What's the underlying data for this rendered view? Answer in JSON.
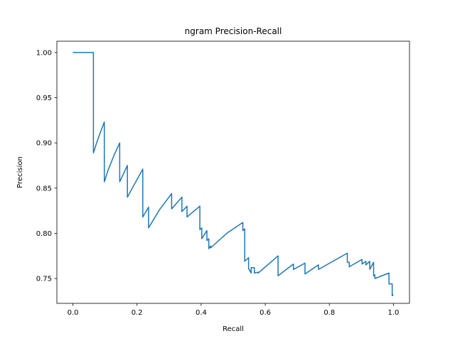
{
  "chart_data": {
    "type": "line",
    "title": "ngram Precision-Recall",
    "xlabel": "Recall",
    "ylabel": "Precision",
    "xlim": [
      -0.05,
      1.05
    ],
    "ylim": [
      0.7225,
      1.0125
    ],
    "xticks": [
      0.0,
      0.2,
      0.4,
      0.6,
      0.8,
      1.0
    ],
    "xtick_labels": [
      "0.0",
      "0.2",
      "0.4",
      "0.6",
      "0.8",
      "1.0"
    ],
    "yticks": [
      0.75,
      0.8,
      0.85,
      0.9,
      0.95,
      1.0
    ],
    "ytick_labels": [
      "0.75",
      "0.80",
      "0.85",
      "0.90",
      "0.95",
      "1.00"
    ],
    "grid": false,
    "line_color": "#1f77b4",
    "series": [
      {
        "x": [
          0.0,
          0.064,
          0.064,
          0.074,
          0.086,
          0.098,
          0.098,
          0.11,
          0.128,
          0.146,
          0.146,
          0.158,
          0.17,
          0.17,
          0.19,
          0.218,
          0.218,
          0.228,
          0.236,
          0.236,
          0.27,
          0.308,
          0.308,
          0.34,
          0.34,
          0.356,
          0.356,
          0.396,
          0.396,
          0.402,
          0.402,
          0.418,
          0.418,
          0.424,
          0.424,
          0.43,
          0.43,
          0.48,
          0.53,
          0.53,
          0.536,
          0.536,
          0.548,
          0.548,
          0.556,
          0.556,
          0.566,
          0.566,
          0.578,
          0.578,
          0.64,
          0.64,
          0.688,
          0.688,
          0.724,
          0.724,
          0.766,
          0.766,
          0.856,
          0.856,
          0.862,
          0.862,
          0.902,
          0.902,
          0.914,
          0.914,
          0.926,
          0.926,
          0.938,
          0.938,
          0.942,
          0.942,
          0.986,
          0.986,
          0.996,
          0.996,
          1.0
        ],
        "y": [
          1.0,
          1.0,
          0.889,
          0.9,
          0.912,
          0.923,
          0.857,
          0.87,
          0.886,
          0.9,
          0.857,
          0.866,
          0.875,
          0.84,
          0.853,
          0.871,
          0.818,
          0.824,
          0.829,
          0.806,
          0.826,
          0.844,
          0.827,
          0.84,
          0.824,
          0.83,
          0.818,
          0.83,
          0.804,
          0.806,
          0.794,
          0.803,
          0.792,
          0.794,
          0.783,
          0.786,
          0.784,
          0.8,
          0.812,
          0.803,
          0.805,
          0.769,
          0.773,
          0.761,
          0.756,
          0.762,
          0.762,
          0.756,
          0.757,
          0.756,
          0.775,
          0.753,
          0.766,
          0.76,
          0.767,
          0.755,
          0.765,
          0.76,
          0.778,
          0.768,
          0.768,
          0.763,
          0.771,
          0.766,
          0.769,
          0.765,
          0.769,
          0.76,
          0.768,
          0.753,
          0.754,
          0.75,
          0.756,
          0.744,
          0.744,
          0.731,
          0.732
        ]
      }
    ]
  }
}
